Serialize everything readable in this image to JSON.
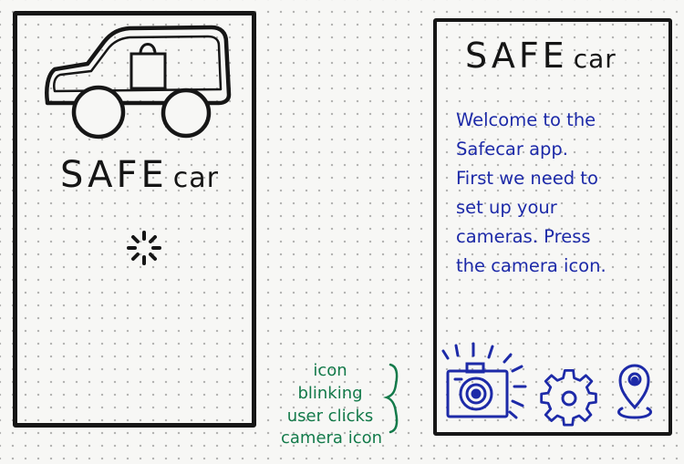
{
  "screens": [
    {
      "logo_primary": "SAFE",
      "logo_secondary": "car"
    },
    {
      "logo_primary": "SAFE",
      "logo_secondary": "car",
      "welcome_lines": [
        "Welcome to the",
        "Safecar app.",
        "First we need to",
        "set up your",
        "cameras. Press",
        "the camera icon."
      ],
      "toolbar_icons": [
        "camera-icon",
        "gear-icon",
        "location-pin-icon"
      ]
    }
  ],
  "annotation": {
    "lines": [
      "icon",
      "blinking",
      "user clicks",
      "camera icon"
    ],
    "ink_color": "#137a4a"
  },
  "colors": {
    "ink_black": "#161616",
    "ink_blue": "#1d2aa8",
    "paper": "#f7f7f5"
  }
}
